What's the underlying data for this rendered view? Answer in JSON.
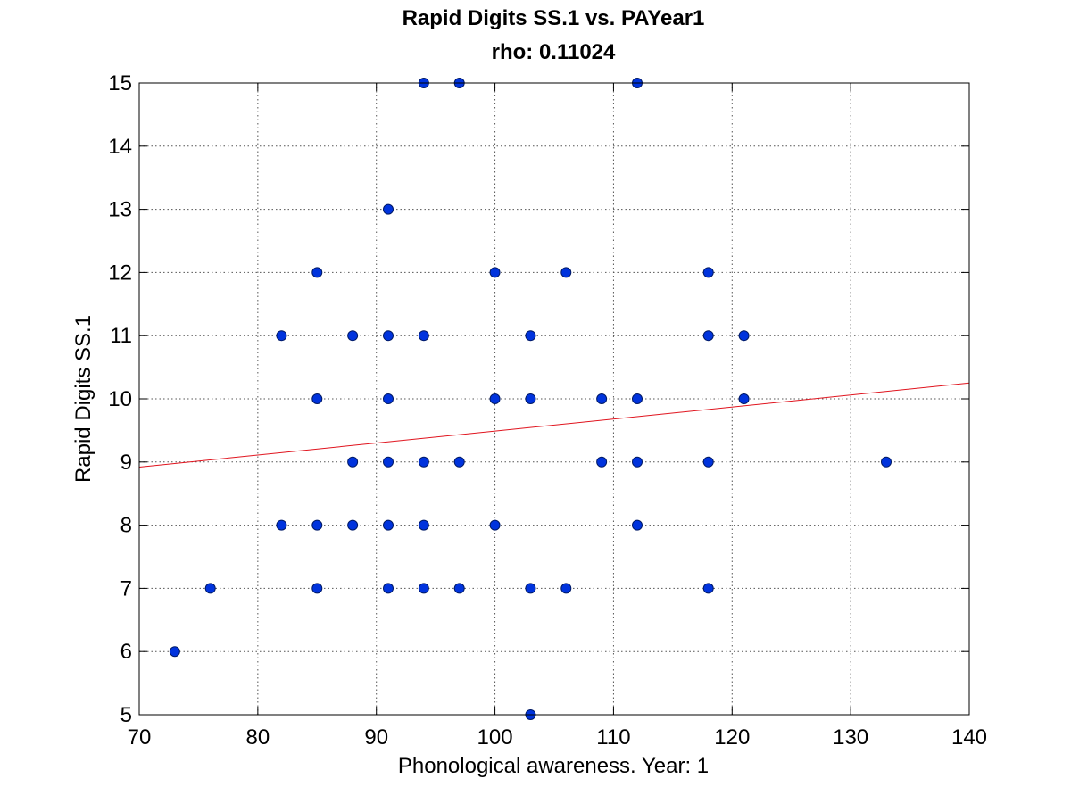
{
  "chart_data": {
    "type": "scatter",
    "title": "Rapid Digits SS.1 vs. PAYear1",
    "subtitle": "rho: 0.11024",
    "xlabel": "Phonological awareness. Year: 1",
    "ylabel": "Rapid Digits SS.1",
    "xlim": [
      70,
      140
    ],
    "ylim": [
      5,
      15
    ],
    "xticks": [
      70,
      80,
      90,
      100,
      110,
      120,
      130,
      140
    ],
    "yticks": [
      5,
      6,
      7,
      8,
      9,
      10,
      11,
      12,
      13,
      14,
      15
    ],
    "grid": true,
    "points": [
      {
        "x": 94,
        "y": 15
      },
      {
        "x": 97,
        "y": 15
      },
      {
        "x": 112,
        "y": 15
      },
      {
        "x": 91,
        "y": 13
      },
      {
        "x": 85,
        "y": 12
      },
      {
        "x": 100,
        "y": 12
      },
      {
        "x": 106,
        "y": 12
      },
      {
        "x": 118,
        "y": 12
      },
      {
        "x": 82,
        "y": 11
      },
      {
        "x": 88,
        "y": 11
      },
      {
        "x": 91,
        "y": 11
      },
      {
        "x": 94,
        "y": 11
      },
      {
        "x": 103,
        "y": 11
      },
      {
        "x": 118,
        "y": 11
      },
      {
        "x": 121,
        "y": 11
      },
      {
        "x": 85,
        "y": 10
      },
      {
        "x": 91,
        "y": 10
      },
      {
        "x": 100,
        "y": 10
      },
      {
        "x": 103,
        "y": 10
      },
      {
        "x": 109,
        "y": 10
      },
      {
        "x": 112,
        "y": 10
      },
      {
        "x": 121,
        "y": 10
      },
      {
        "x": 88,
        "y": 9
      },
      {
        "x": 91,
        "y": 9
      },
      {
        "x": 94,
        "y": 9
      },
      {
        "x": 97,
        "y": 9
      },
      {
        "x": 109,
        "y": 9
      },
      {
        "x": 112,
        "y": 9
      },
      {
        "x": 118,
        "y": 9
      },
      {
        "x": 133,
        "y": 9
      },
      {
        "x": 82,
        "y": 8
      },
      {
        "x": 85,
        "y": 8
      },
      {
        "x": 88,
        "y": 8
      },
      {
        "x": 91,
        "y": 8
      },
      {
        "x": 94,
        "y": 8
      },
      {
        "x": 100,
        "y": 8
      },
      {
        "x": 112,
        "y": 8
      },
      {
        "x": 76,
        "y": 7
      },
      {
        "x": 85,
        "y": 7
      },
      {
        "x": 91,
        "y": 7
      },
      {
        "x": 94,
        "y": 7
      },
      {
        "x": 97,
        "y": 7
      },
      {
        "x": 103,
        "y": 7
      },
      {
        "x": 106,
        "y": 7
      },
      {
        "x": 118,
        "y": 7
      },
      {
        "x": 73,
        "y": 6
      },
      {
        "x": 103,
        "y": 5
      }
    ],
    "fit_line": {
      "x": [
        70,
        140
      ],
      "y": [
        8.92,
        10.25
      ]
    },
    "colors": {
      "marker_fill": "#0033dd",
      "marker_edge": "#001a66",
      "fit_line": "#e0141e",
      "grid": "#555555",
      "axes": "#000000"
    }
  }
}
